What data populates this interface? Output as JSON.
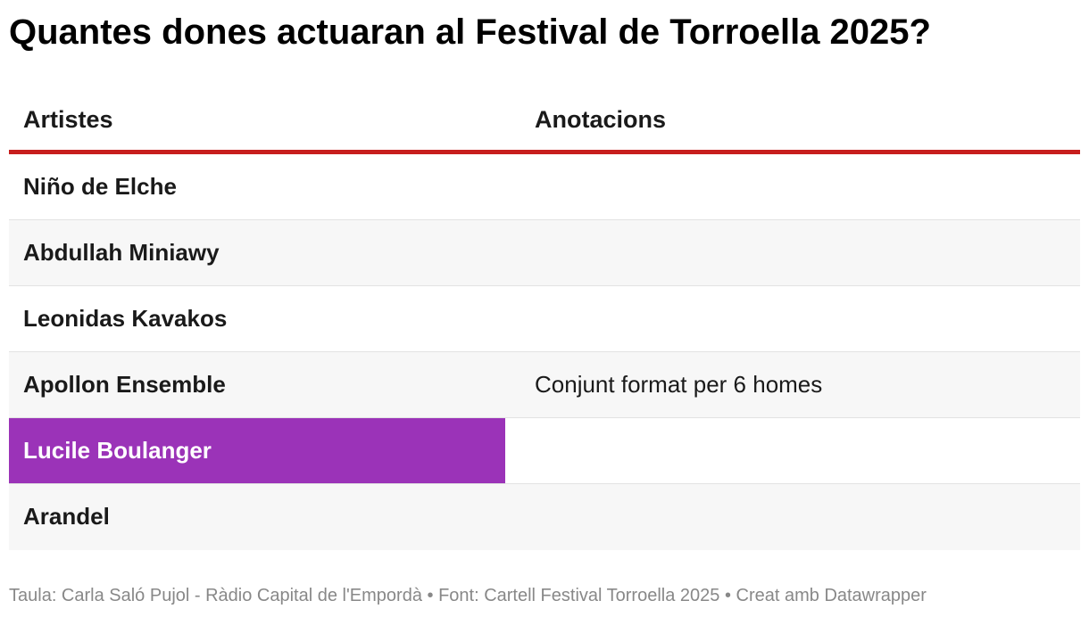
{
  "title": "Quantes dones actuaran al Festival de Torroella 2025?",
  "colors": {
    "header_rule": "#c71e1d",
    "highlight": "#9b33b8",
    "highlight_text": "#ffffff",
    "row_alt": "#f7f7f7",
    "footer_text": "#888888"
  },
  "chart_data": {
    "type": "table",
    "title": "Quantes dones actuaran al Festival de Torroella 2025?",
    "columns": [
      "Artistes",
      "Anotacions"
    ],
    "rows": [
      {
        "artist": "Niño de Elche",
        "note": "",
        "highlighted": false
      },
      {
        "artist": "Abdullah Miniawy",
        "note": "",
        "highlighted": false
      },
      {
        "artist": "Leonidas Kavakos",
        "note": "",
        "highlighted": false
      },
      {
        "artist": "Apollon Ensemble",
        "note": "Conjunt format per 6 homes",
        "highlighted": false
      },
      {
        "artist": "Lucile Boulanger",
        "note": "",
        "highlighted": true
      },
      {
        "artist": "Arandel",
        "note": "",
        "highlighted": false
      }
    ]
  },
  "footer": {
    "text": "Taula: Carla Saló Pujol - Ràdio Capital de l'Empordà • Font: Cartell Festival Torroella 2025 • Creat amb Datawrapper"
  }
}
